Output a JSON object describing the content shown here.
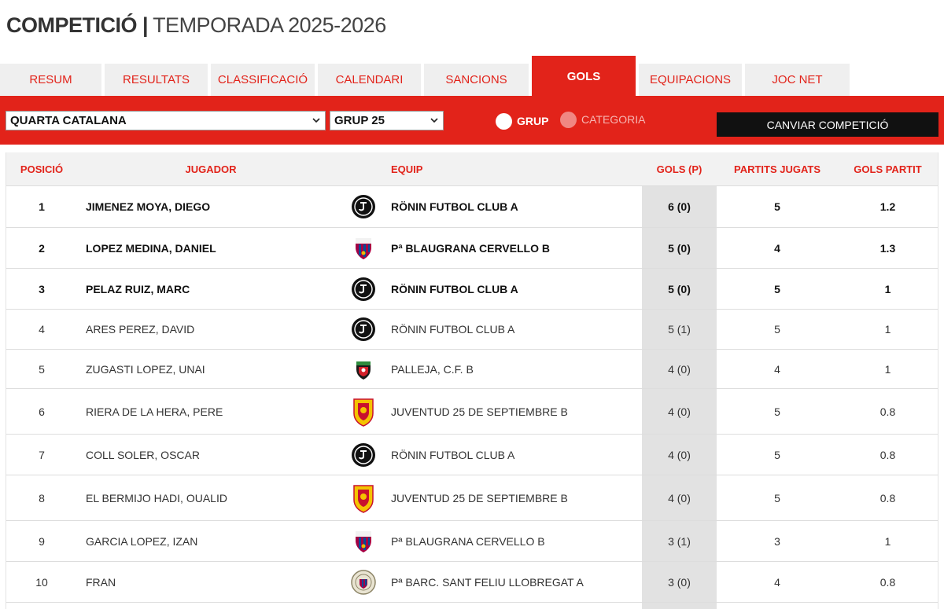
{
  "header": {
    "title_strong": "COMPETICIÓ |",
    "title_light": "TEMPORADA 2025-2026"
  },
  "tabs": [
    {
      "label": "RESUM"
    },
    {
      "label": "RESULTATS"
    },
    {
      "label": "CLASSIFICACIÓ"
    },
    {
      "label": "CALENDARI"
    },
    {
      "label": "SANCIONS"
    },
    {
      "label": "GOLS",
      "active": true
    },
    {
      "label": "EQUIPACIONS"
    },
    {
      "label": "JOC NET"
    }
  ],
  "filters": {
    "competition": "QUARTA CATALANA",
    "group": "GRUP 25",
    "radio_group": "GRUP",
    "radio_category": "CATEGORIA",
    "change_button": "CANVIAR COMPETICIÓ"
  },
  "table": {
    "headers": {
      "position": "POSICIÓ",
      "player": "JUGADOR",
      "team": "EQUIP",
      "goals": "GOLS (P)",
      "played": "PARTITS JUGATS",
      "ratio": "GOLS PARTIT"
    },
    "rows": [
      {
        "pos": "1",
        "player": "JIMENEZ MOYA, DIEGO",
        "badge": "ronin-badge-icon",
        "team": "RÖNIN FUTBOL CLUB A",
        "goals": "6 (0)",
        "played": "5",
        "ratio": "1.2",
        "bold": true
      },
      {
        "pos": "2",
        "player": "LOPEZ MEDINA, DANIEL",
        "badge": "barca-crest-icon",
        "team": "Pª BLAUGRANA CERVELLO B",
        "goals": "5 (0)",
        "played": "4",
        "ratio": "1.3",
        "bold": true
      },
      {
        "pos": "3",
        "player": "PELAZ RUIZ, MARC",
        "badge": "ronin-badge-icon",
        "team": "RÖNIN FUTBOL CLUB A",
        "goals": "5 (0)",
        "played": "5",
        "ratio": "1",
        "bold": true
      },
      {
        "pos": "4",
        "player": "ARES PEREZ, DAVID",
        "badge": "ronin-badge-icon",
        "team": "RÖNIN FUTBOL CLUB A",
        "goals": "5 (1)",
        "played": "5",
        "ratio": "1"
      },
      {
        "pos": "5",
        "player": "ZUGASTI LOPEZ, UNAI",
        "badge": "palleja-crest-icon",
        "team": "PALLEJA, C.F. B",
        "goals": "4 (0)",
        "played": "4",
        "ratio": "1"
      },
      {
        "pos": "6",
        "player": "RIERA DE LA HERA, PERE",
        "badge": "juventud-crest-icon",
        "team": "JUVENTUD 25 DE SEPTIEMBRE B",
        "goals": "4 (0)",
        "played": "5",
        "ratio": "0.8"
      },
      {
        "pos": "7",
        "player": "COLL SOLER, OSCAR",
        "badge": "ronin-badge-icon",
        "team": "RÖNIN FUTBOL CLUB A",
        "goals": "4 (0)",
        "played": "5",
        "ratio": "0.8"
      },
      {
        "pos": "8",
        "player": "EL BERMIJO HADI, OUALID",
        "badge": "juventud-crest-icon",
        "team": "JUVENTUD 25 DE SEPTIEMBRE B",
        "goals": "4 (0)",
        "played": "5",
        "ratio": "0.8"
      },
      {
        "pos": "9",
        "player": "GARCIA LOPEZ, IZAN",
        "badge": "barca-crest-icon",
        "team": "Pª BLAUGRANA CERVELLO B",
        "goals": "3 (1)",
        "played": "3",
        "ratio": "1"
      },
      {
        "pos": "10",
        "player": "FRAN",
        "badge": "sant-feliu-crest-icon",
        "team": "Pª BARC. SANT FELIU LLOBREGAT A",
        "goals": "3 (0)",
        "played": "4",
        "ratio": "0.8"
      }
    ]
  }
}
